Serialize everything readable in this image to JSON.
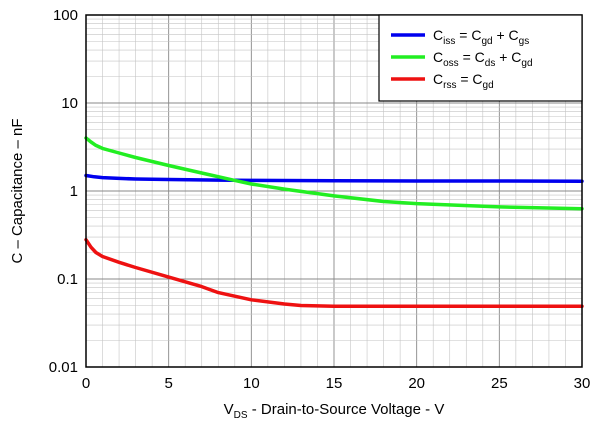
{
  "chart_data": {
    "type": "line",
    "ylabel": "C – Capacitance – nF",
    "xlabel": {
      "main": "V",
      "sub": "DS",
      "rest": " - Drain-to-Source Voltage - V"
    },
    "xlim": [
      0,
      30
    ],
    "ylim": [
      0.01,
      100
    ],
    "yscale": "log",
    "xticks": [
      "0",
      "5",
      "10",
      "15",
      "20",
      "25",
      "30"
    ],
    "xtick_values": [
      0,
      5,
      10,
      15,
      20,
      25,
      30
    ],
    "yticks": [
      "0.01",
      "0.1",
      "1",
      "10",
      "100"
    ],
    "ytick_values": [
      0.01,
      0.1,
      1,
      10,
      100
    ],
    "grid": true,
    "legend_position": "top-right",
    "series": [
      {
        "key": "ciss",
        "color": "#0000ee",
        "legend": [
          {
            "t": "C"
          },
          {
            "t": "iss",
            "sub": true
          },
          {
            "t": " = C"
          },
          {
            "t": "gd",
            "sub": true
          },
          {
            "t": " + C"
          },
          {
            "t": "gs",
            "sub": true
          }
        ],
        "x": [
          0,
          0.5,
          1,
          2,
          3,
          5,
          8,
          10,
          15,
          20,
          25,
          30
        ],
        "y": [
          1.5,
          1.45,
          1.42,
          1.39,
          1.37,
          1.35,
          1.33,
          1.32,
          1.31,
          1.3,
          1.3,
          1.29
        ]
      },
      {
        "key": "coss",
        "color": "#22ee22",
        "legend": [
          {
            "t": "C"
          },
          {
            "t": "oss",
            "sub": true
          },
          {
            "t": " = C"
          },
          {
            "t": "ds",
            "sub": true
          },
          {
            "t": " + C"
          },
          {
            "t": "gd",
            "sub": true
          }
        ],
        "x": [
          0,
          0.3,
          0.6,
          1,
          2,
          3,
          5,
          7,
          9,
          10,
          12,
          15,
          18,
          20,
          25,
          30
        ],
        "y": [
          4.0,
          3.6,
          3.3,
          3.05,
          2.7,
          2.4,
          1.95,
          1.6,
          1.32,
          1.2,
          1.05,
          0.88,
          0.76,
          0.72,
          0.66,
          0.63
        ]
      },
      {
        "key": "crss",
        "color": "#ee1111",
        "legend": [
          {
            "t": "C"
          },
          {
            "t": "rss",
            "sub": true
          },
          {
            "t": " =  C"
          },
          {
            "t": "gd",
            "sub": true
          }
        ],
        "x": [
          0,
          0.3,
          0.6,
          1,
          2,
          3,
          5,
          7,
          8,
          10,
          12,
          13,
          15,
          20,
          25,
          30
        ],
        "y": [
          0.28,
          0.23,
          0.2,
          0.18,
          0.155,
          0.135,
          0.105,
          0.082,
          0.07,
          0.058,
          0.052,
          0.05,
          0.049,
          0.049,
          0.049,
          0.049
        ]
      }
    ]
  }
}
